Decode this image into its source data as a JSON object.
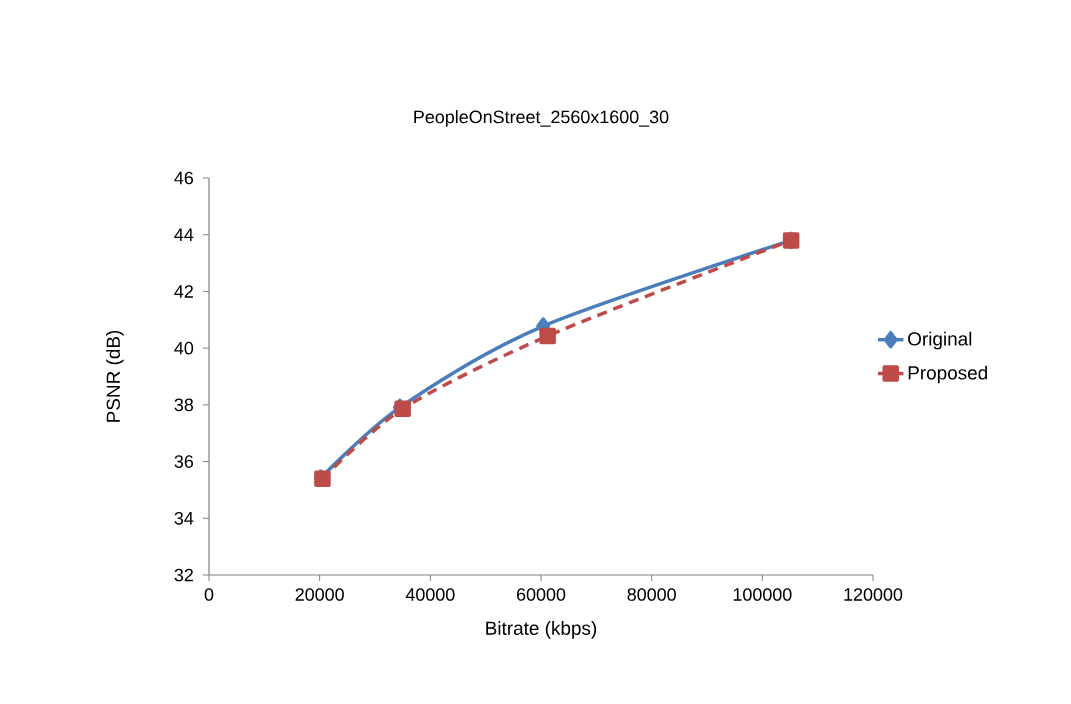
{
  "chart_data": {
    "type": "line",
    "title": "PeopleOnStreet_2560x1600_30",
    "xlabel": "Bitrate (kbps)",
    "ylabel": "PSNR (dB)",
    "xlim": [
      0,
      120000
    ],
    "xticks": [
      0,
      20000,
      40000,
      60000,
      80000,
      100000,
      120000
    ],
    "ylim": [
      32,
      46
    ],
    "yticks": [
      32,
      34,
      36,
      38,
      40,
      42,
      44,
      46
    ],
    "grid": false,
    "legend": "right",
    "series": [
      {
        "name": "Original",
        "color": "#4a7ebb",
        "marker": "diamond",
        "line_style": "solid",
        "x": [
          20200,
          34500,
          60400,
          105200
        ],
        "values": [
          35.42,
          37.91,
          40.78,
          43.8
        ]
      },
      {
        "name": "Proposed",
        "color": "#be4b48",
        "marker": "square",
        "line_style": "dashed",
        "x": [
          20500,
          35000,
          61200,
          105200
        ],
        "values": [
          35.39,
          37.86,
          40.43,
          43.8
        ]
      }
    ]
  }
}
